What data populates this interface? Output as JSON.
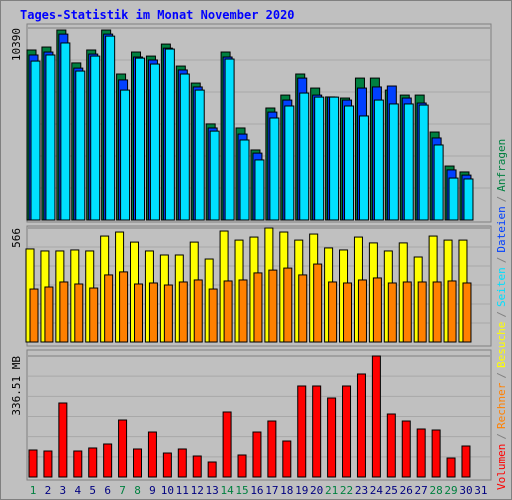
{
  "legend_separator": "/",
  "chart_data": [
    {
      "type": "bar",
      "title": "Tages-Statistik im Monat November 2020",
      "ylim": [
        0,
        10390
      ],
      "yticks": [
        10390
      ],
      "series": [
        {
          "name": "Anfragen",
          "color": "#008040",
          "values": [
            9200,
            9360,
            10280,
            8500,
            9200,
            10280,
            7900,
            9090,
            8870,
            9520,
            8330,
            7410,
            5200,
            9090,
            4980,
            3790,
            6060,
            6760,
            7900,
            7140,
            6660,
            6600,
            7680,
            7680,
            7030,
            6760,
            6760,
            4760,
            2920,
            2600,
            null
          ]
        },
        {
          "name": "Dateien",
          "color": "#0040ff",
          "values": [
            8930,
            9090,
            10060,
            8220,
            8980,
            10060,
            7580,
            8820,
            8660,
            9300,
            8120,
            7200,
            4980,
            8820,
            4650,
            3620,
            5840,
            6490,
            7680,
            6760,
            6650,
            6490,
            7140,
            7200,
            7250,
            6600,
            6330,
            4440,
            2710,
            2430,
            null
          ]
        },
        {
          "name": "Seiten",
          "color": "#00e0ff",
          "values": [
            8600,
            8930,
            9580,
            8060,
            8870,
            9950,
            7030,
            8760,
            8440,
            9250,
            7900,
            7030,
            4810,
            8710,
            4330,
            3250,
            5520,
            6170,
            6870,
            6650,
            6650,
            6170,
            5630,
            6490,
            6280,
            6280,
            6220,
            4060,
            2270,
            2220,
            null
          ]
        }
      ]
    },
    {
      "type": "bar",
      "ylim": [
        0,
        566
      ],
      "yticks": [
        566
      ],
      "series": [
        {
          "name": "Besuche",
          "color": "#ffff00",
          "values": [
            462,
            452,
            452,
            457,
            452,
            526,
            546,
            496,
            452,
            432,
            432,
            496,
            412,
            551,
            506,
            521,
            566,
            546,
            506,
            536,
            467,
            457,
            521,
            492,
            452,
            492,
            422,
            526,
            506,
            506,
            null
          ]
        },
        {
          "name": "Rechner",
          "color": "#ff8000",
          "values": [
            263,
            273,
            298,
            288,
            268,
            333,
            348,
            288,
            293,
            283,
            298,
            308,
            263,
            303,
            308,
            343,
            357,
            367,
            333,
            387,
            298,
            293,
            308,
            318,
            293,
            298,
            298,
            298,
            303,
            293,
            null
          ]
        }
      ]
    },
    {
      "type": "bar",
      "ylim": [
        0,
        336.51
      ],
      "yticks": [
        {
          "value": 336.51,
          "label": "336.51 MB"
        }
      ],
      "categories": [
        "1",
        "2",
        "3",
        "4",
        "5",
        "6",
        "7",
        "8",
        "9",
        "10",
        "11",
        "12",
        "13",
        "14",
        "15",
        "16",
        "17",
        "18",
        "19",
        "20",
        "21",
        "22",
        "23",
        "24",
        "25",
        "26",
        "27",
        "28",
        "29",
        "30",
        "31"
      ],
      "category_colors": [
        "#008040",
        "#000080",
        "#000080",
        "#000080",
        "#000080",
        "#000080",
        "#008040",
        "#008040",
        "#000080",
        "#000080",
        "#000080",
        "#000080",
        "#000080",
        "#008040",
        "#008040",
        "#000080",
        "#000080",
        "#000080",
        "#000080",
        "#000080",
        "#008040",
        "#008040",
        "#000080",
        "#000080",
        "#000080",
        "#000080",
        "#000080",
        "#008040",
        "#008040",
        "#000080",
        "#000080"
      ],
      "series": [
        {
          "name": "Volumen",
          "color": "#ff0000",
          "values": [
            75.1,
            72.3,
            205.8,
            72.3,
            80.7,
            91.8,
            158.5,
            77.9,
            125.1,
            66.7,
            77.9,
            58.4,
            41.7,
            180.8,
            61.2,
            125.1,
            155.7,
            100.1,
            253.1,
            253.1,
            219.7,
            253.1,
            286.5,
            336.51,
            175.2,
            155.7,
            133.5,
            130.7,
            52.8,
            86.2,
            null
          ]
        }
      ]
    }
  ]
}
